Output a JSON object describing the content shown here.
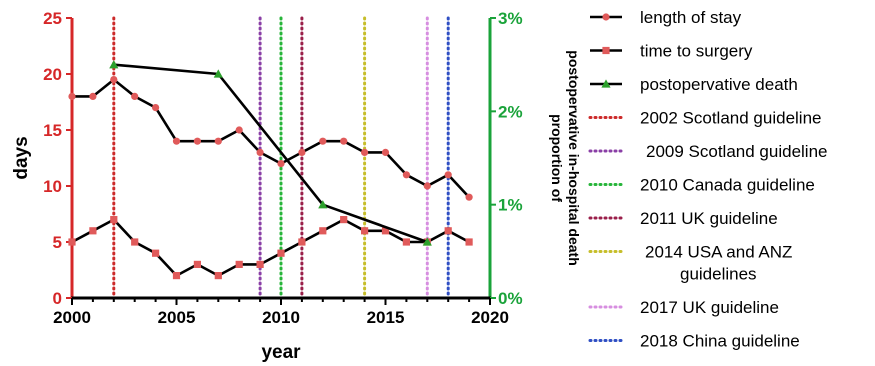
{
  "chart_data": {
    "type": "line",
    "xlabel": "year",
    "ylabel_left": "days",
    "ylabel_right": [
      "proportion of",
      "postopervative in-hospital death"
    ],
    "xlim": [
      2000,
      2020
    ],
    "ylim_left": [
      0,
      25
    ],
    "ylim_right": [
      0,
      3
    ],
    "x_ticks": [
      "2000",
      "2005",
      "2010",
      "2015",
      "2020"
    ],
    "y_left_ticks": [
      "0",
      "5",
      "10",
      "15",
      "20",
      "25"
    ],
    "y_right_ticks": [
      "0%",
      "1%",
      "2%",
      "3%"
    ],
    "grid": false,
    "legend_position": "right",
    "series": [
      {
        "name": "length of stay",
        "axis": "left",
        "color": "#000000",
        "marker": "circle",
        "marker_color": "#e05a5a",
        "x": [
          2000,
          2001,
          2002,
          2003,
          2004,
          2005,
          2006,
          2007,
          2008,
          2009,
          2010,
          2011,
          2012,
          2013,
          2014,
          2015,
          2016,
          2017,
          2018,
          2019
        ],
        "y": [
          18,
          18,
          19.5,
          18,
          17,
          14,
          14,
          14,
          15,
          13,
          12,
          13,
          14,
          14,
          13,
          13,
          11,
          10,
          11,
          9
        ]
      },
      {
        "name": "time to surgery",
        "axis": "left",
        "color": "#000000",
        "marker": "square",
        "marker_color": "#e05a5a",
        "x": [
          2000,
          2001,
          2002,
          2003,
          2004,
          2005,
          2006,
          2007,
          2008,
          2009,
          2010,
          2011,
          2012,
          2013,
          2014,
          2015,
          2016,
          2017,
          2018,
          2019
        ],
        "y": [
          5,
          6,
          7,
          5,
          4,
          2,
          3,
          2,
          3,
          3,
          4,
          5,
          6,
          7,
          6,
          6,
          5,
          5,
          6,
          5
        ]
      },
      {
        "name": "postopervative death",
        "axis": "right",
        "color": "#000000",
        "marker": "triangle",
        "marker_color": "#2ca02c",
        "x": [
          2002,
          2007,
          2012,
          2017
        ],
        "y": [
          2.5,
          2.4,
          1.0,
          0.6
        ]
      }
    ],
    "guidelines": [
      {
        "year": 2002,
        "label": "2002 Scotland guideline",
        "color": "#cc2a2a"
      },
      {
        "year": 2009,
        "label": "2009 Scotland guideline",
        "color": "#8a3fa6"
      },
      {
        "year": 2010,
        "label": "2010 Canada  guideline",
        "color": "#27b53a"
      },
      {
        "year": 2011,
        "label": "2011 UK guideline",
        "color": "#9a1f4a"
      },
      {
        "year": 2014,
        "label": [
          "2014 USA and ANZ",
          "guidelines"
        ],
        "color": "#c6be2a"
      },
      {
        "year": 2017,
        "label": "2017 UK guideline",
        "color": "#d78ee0"
      },
      {
        "year": 2018,
        "label": "2018 China guideline",
        "color": "#2f4fc4"
      }
    ]
  }
}
